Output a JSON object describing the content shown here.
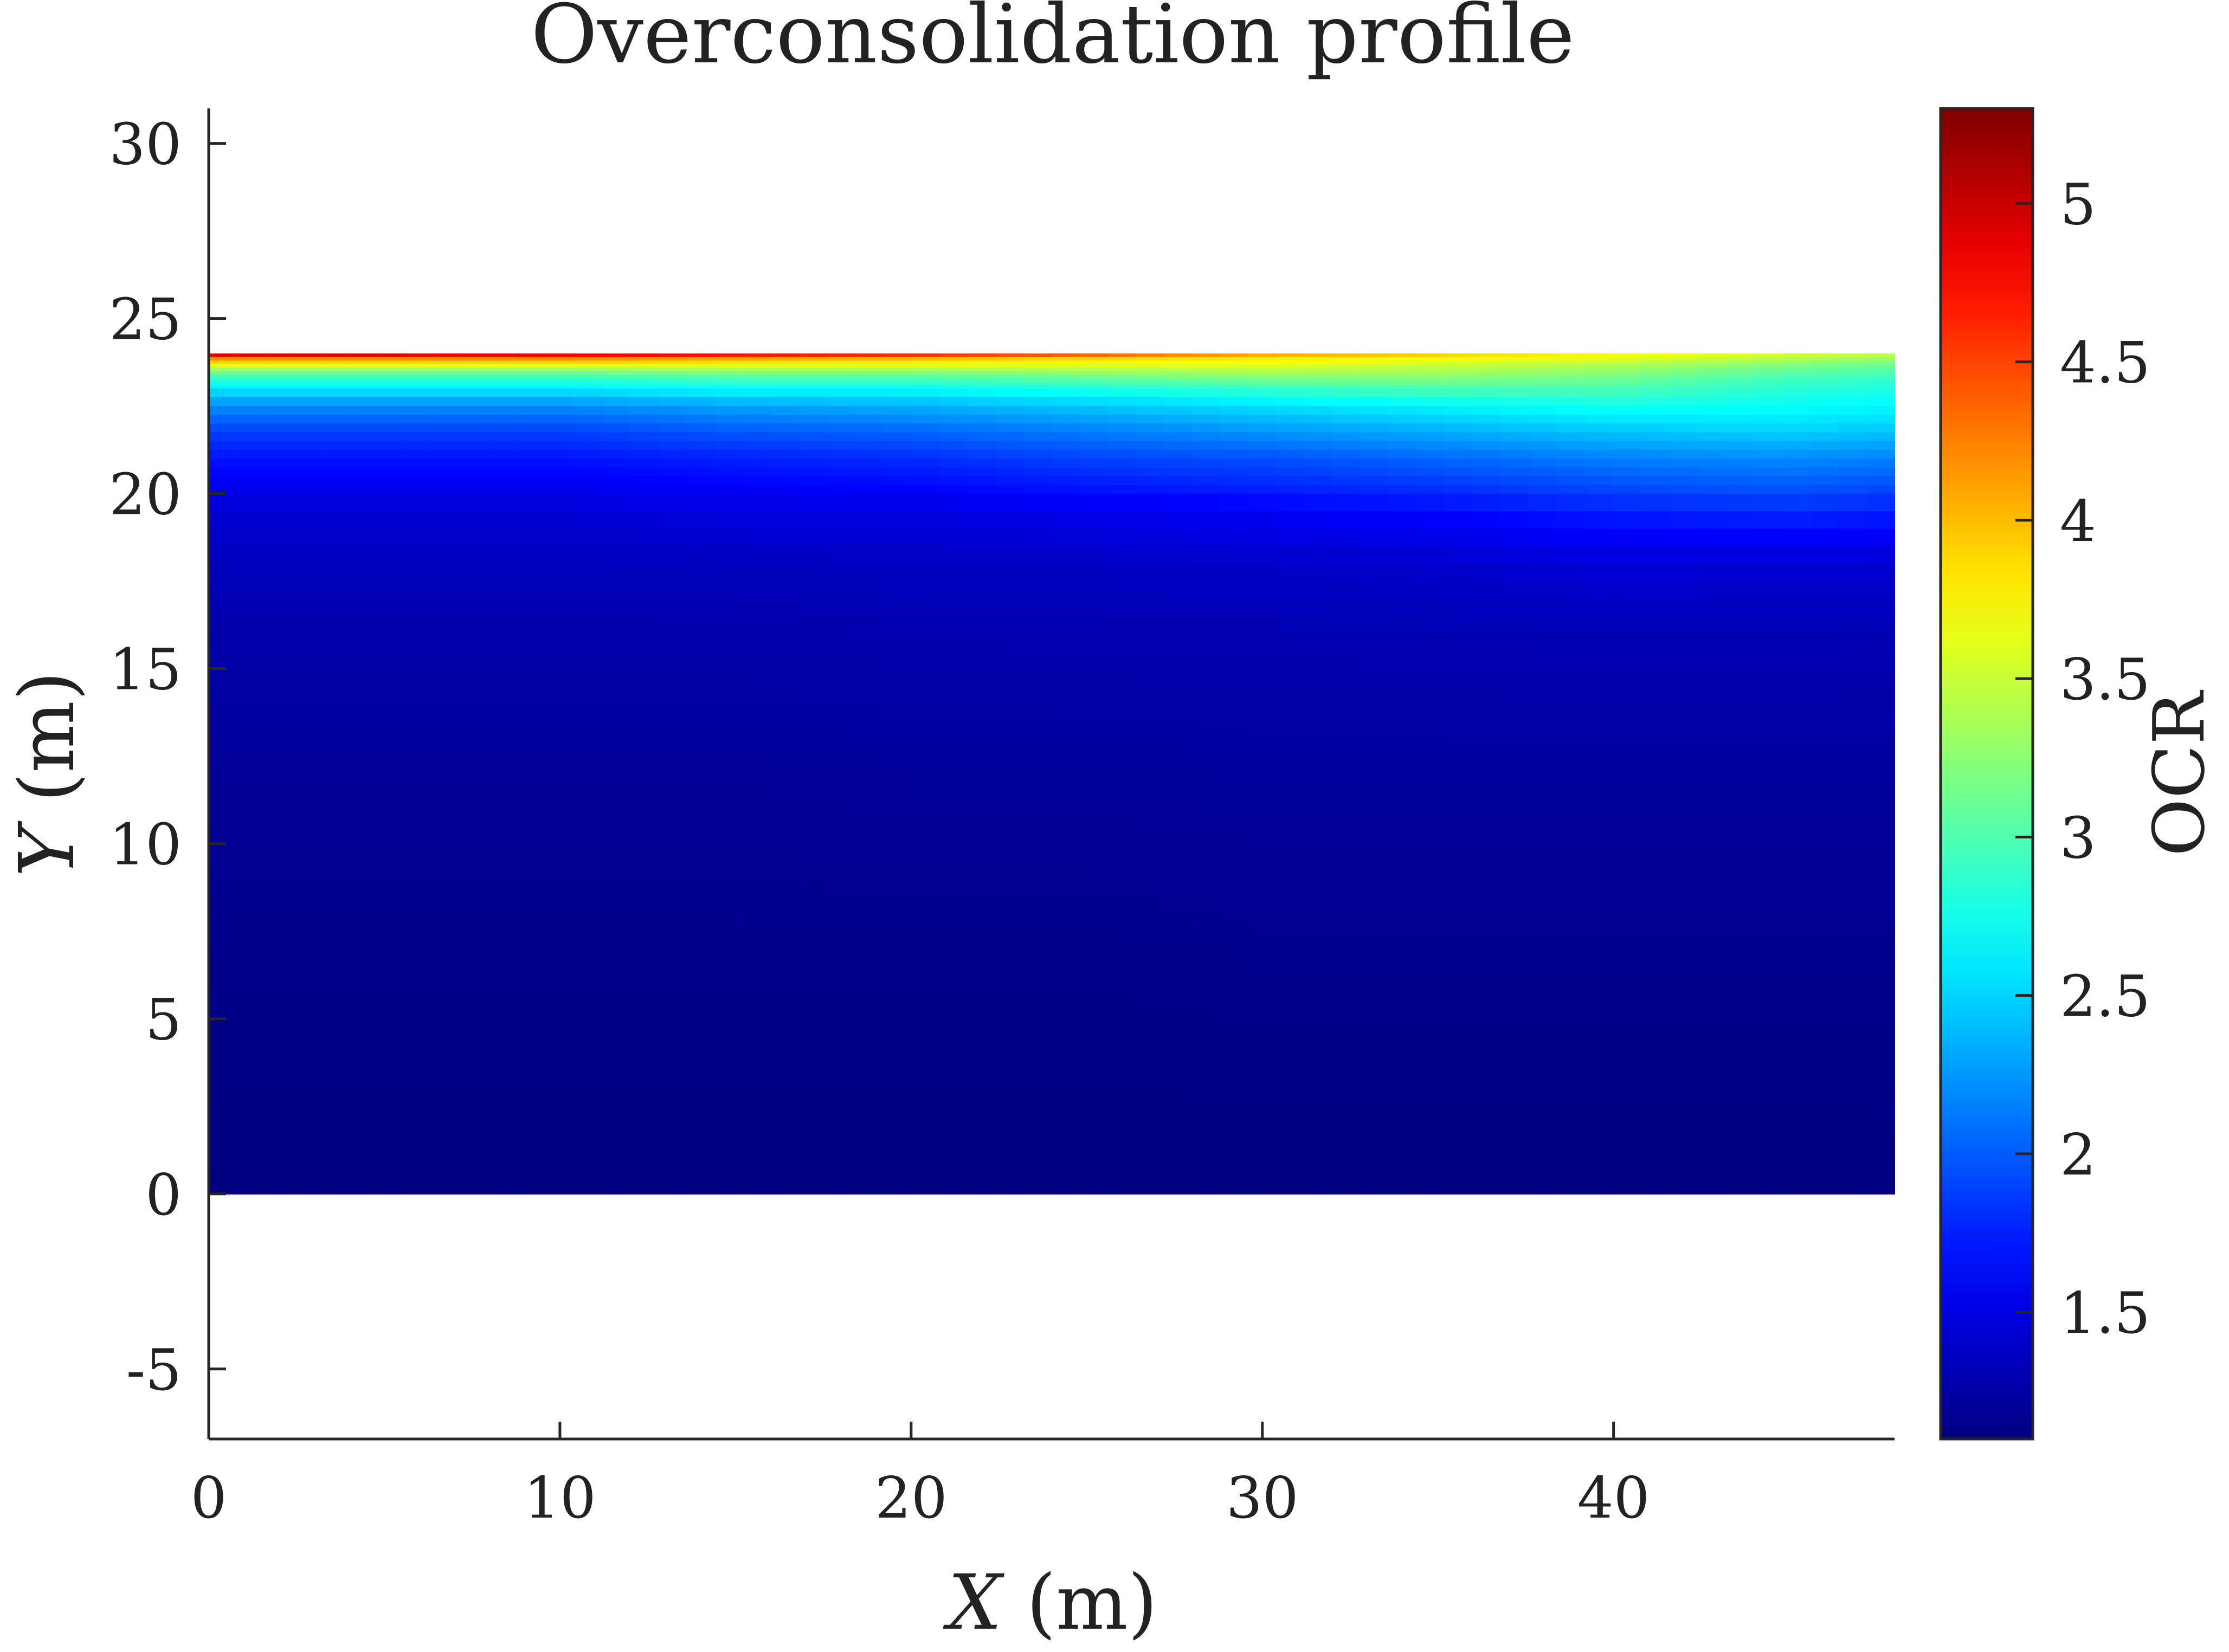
{
  "chart_data": {
    "type": "heatmap",
    "title": "Overconsolidation profile",
    "xlabel_var": "X",
    "xlabel_unit": "(m)",
    "ylabel_var": "Y",
    "ylabel_unit": "(m)",
    "colorbar_label": "OCR",
    "xlim": [
      0,
      48
    ],
    "ylim": [
      -7,
      31
    ],
    "x_ticks": [
      0,
      10,
      20,
      30,
      40
    ],
    "x_tick_labels": [
      "0",
      "10",
      "20",
      "30",
      "40"
    ],
    "y_ticks": [
      -5,
      0,
      5,
      10,
      15,
      20,
      25,
      30
    ],
    "y_tick_labels": [
      "-5",
      "0",
      "5",
      "10",
      "15",
      "20",
      "25",
      "30"
    ],
    "colorbar_range": [
      1.1,
      5.3
    ],
    "colorbar_ticks": [
      1.5,
      2,
      2.5,
      3,
      3.5,
      4,
      4.5,
      5
    ],
    "colorbar_tick_labels": [
      "1.5",
      "2",
      "2.5",
      "3",
      "3.5",
      "4",
      "4.5",
      "5"
    ],
    "colormap": "jet",
    "domain": {
      "x": [
        0,
        48
      ],
      "y": [
        0,
        24
      ]
    },
    "profile_x": [
      0,
      5,
      10,
      15,
      20,
      25,
      30,
      35,
      40,
      45,
      48
    ],
    "profile_depth": [
      0,
      0.15,
      0.35,
      0.6,
      1.0,
      1.5,
      2.2,
      3.0,
      4.5,
      6.0,
      8.0,
      12.0,
      18.0,
      24.0
    ],
    "profile_ocr": [
      [
        5.2,
        4.2,
        3.6,
        3.0,
        2.6,
        2.2,
        1.9,
        1.7,
        1.45,
        1.35,
        1.28,
        1.2,
        1.14,
        1.1
      ],
      [
        5.2,
        4.2,
        3.6,
        3.0,
        2.6,
        2.2,
        1.9,
        1.7,
        1.45,
        1.35,
        1.28,
        1.2,
        1.14,
        1.1
      ],
      [
        5.1,
        4.2,
        3.6,
        3.0,
        2.6,
        2.2,
        1.9,
        1.7,
        1.45,
        1.35,
        1.28,
        1.2,
        1.14,
        1.1
      ],
      [
        5.0,
        4.1,
        3.6,
        3.1,
        2.7,
        2.3,
        2.0,
        1.75,
        1.5,
        1.36,
        1.28,
        1.2,
        1.14,
        1.1
      ],
      [
        4.9,
        4.0,
        3.6,
        3.1,
        2.7,
        2.35,
        2.05,
        1.8,
        1.5,
        1.37,
        1.29,
        1.21,
        1.14,
        1.1
      ],
      [
        4.6,
        3.9,
        3.6,
        3.2,
        2.8,
        2.45,
        2.15,
        1.9,
        1.55,
        1.38,
        1.3,
        1.21,
        1.14,
        1.1
      ],
      [
        4.2,
        3.8,
        3.6,
        3.3,
        2.9,
        2.55,
        2.25,
        1.95,
        1.6,
        1.4,
        1.3,
        1.22,
        1.15,
        1.1
      ],
      [
        4.0,
        3.7,
        3.5,
        3.3,
        3.0,
        2.65,
        2.35,
        2.05,
        1.65,
        1.42,
        1.31,
        1.22,
        1.15,
        1.1
      ],
      [
        3.8,
        3.6,
        3.4,
        3.2,
        3.0,
        2.75,
        2.45,
        2.15,
        1.75,
        1.46,
        1.32,
        1.22,
        1.15,
        1.1
      ],
      [
        3.6,
        3.4,
        3.2,
        3.0,
        2.85,
        2.7,
        2.5,
        2.2,
        1.8,
        1.45,
        1.32,
        1.22,
        1.15,
        1.1
      ],
      [
        3.5,
        3.3,
        3.1,
        2.95,
        2.8,
        2.65,
        2.45,
        2.15,
        1.75,
        1.44,
        1.31,
        1.22,
        1.15,
        1.1
      ]
    ]
  }
}
